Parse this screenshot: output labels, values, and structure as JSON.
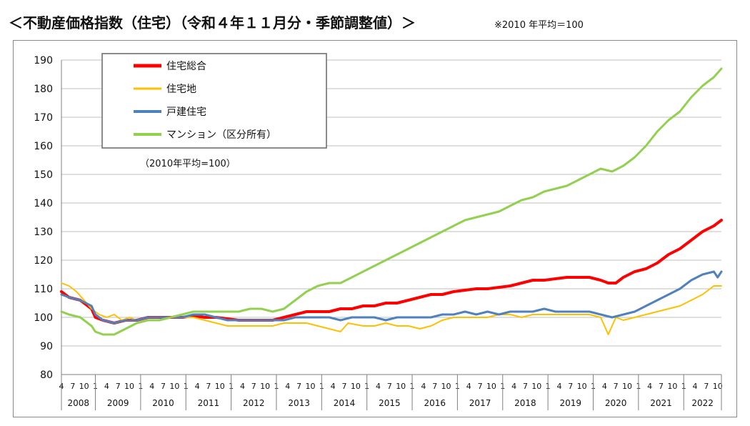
{
  "title": "＜不動産価格指数（住宅）（令和４年１１月分・季節調整値）＞",
  "base_note": "※2010 年平均＝100",
  "chart_data": {
    "type": "line",
    "annotation": "（2010年平均=100）",
    "ylim": [
      80,
      190
    ],
    "yticks": [
      80,
      90,
      100,
      110,
      120,
      130,
      140,
      150,
      160,
      170,
      180,
      190
    ],
    "month_tick_labels": [
      "1",
      "4",
      "7",
      "10"
    ],
    "years": [
      "2008",
      "2009",
      "2010",
      "2011",
      "2012",
      "2013",
      "2014",
      "2015",
      "2016",
      "2017",
      "2018",
      "2019",
      "2020",
      "2021",
      "2022"
    ],
    "x_start": "2008-04",
    "x_end": "2022-11",
    "grid": true,
    "legend_position": "top-left",
    "series": [
      {
        "name": "住宅総合",
        "color": "#ff0000",
        "width": 4,
        "points": [
          [
            "2008-04",
            109
          ],
          [
            "2008-06",
            107
          ],
          [
            "2008-09",
            106
          ],
          [
            "2008-12",
            103
          ],
          [
            "2009-01",
            100
          ],
          [
            "2009-03",
            99
          ],
          [
            "2009-06",
            98
          ],
          [
            "2009-09",
            99
          ],
          [
            "2009-12",
            99
          ],
          [
            "2010-03",
            100
          ],
          [
            "2010-06",
            100
          ],
          [
            "2010-09",
            100
          ],
          [
            "2010-12",
            100
          ],
          [
            "2011-03",
            100.5
          ],
          [
            "2011-06",
            100
          ],
          [
            "2011-09",
            100
          ],
          [
            "2011-12",
            99.5
          ],
          [
            "2012-03",
            99
          ],
          [
            "2012-06",
            99
          ],
          [
            "2012-09",
            99
          ],
          [
            "2012-12",
            99
          ],
          [
            "2013-03",
            100
          ],
          [
            "2013-06",
            101
          ],
          [
            "2013-09",
            102
          ],
          [
            "2013-12",
            102
          ],
          [
            "2014-03",
            102
          ],
          [
            "2014-06",
            103
          ],
          [
            "2014-09",
            103
          ],
          [
            "2014-12",
            104
          ],
          [
            "2015-03",
            104
          ],
          [
            "2015-06",
            105
          ],
          [
            "2015-09",
            105
          ],
          [
            "2015-12",
            106
          ],
          [
            "2016-03",
            107
          ],
          [
            "2016-06",
            108
          ],
          [
            "2016-09",
            108
          ],
          [
            "2016-12",
            109
          ],
          [
            "2017-03",
            109.5
          ],
          [
            "2017-06",
            110
          ],
          [
            "2017-09",
            110
          ],
          [
            "2017-12",
            110.5
          ],
          [
            "2018-03",
            111
          ],
          [
            "2018-06",
            112
          ],
          [
            "2018-09",
            113
          ],
          [
            "2018-12",
            113
          ],
          [
            "2019-03",
            113.5
          ],
          [
            "2019-06",
            114
          ],
          [
            "2019-09",
            114
          ],
          [
            "2019-12",
            114
          ],
          [
            "2020-03",
            113
          ],
          [
            "2020-05",
            112
          ],
          [
            "2020-07",
            112
          ],
          [
            "2020-09",
            114
          ],
          [
            "2020-12",
            116
          ],
          [
            "2021-03",
            117
          ],
          [
            "2021-06",
            119
          ],
          [
            "2021-09",
            122
          ],
          [
            "2021-12",
            124
          ],
          [
            "2022-03",
            127
          ],
          [
            "2022-06",
            130
          ],
          [
            "2022-09",
            132
          ],
          [
            "2022-11",
            134
          ]
        ]
      },
      {
        "name": "住宅地",
        "color": "#ffc000",
        "width": 2,
        "points": [
          [
            "2008-04",
            112
          ],
          [
            "2008-06",
            111
          ],
          [
            "2008-08",
            109
          ],
          [
            "2008-10",
            106
          ],
          [
            "2008-12",
            103
          ],
          [
            "2009-02",
            101
          ],
          [
            "2009-04",
            100
          ],
          [
            "2009-06",
            101
          ],
          [
            "2009-08",
            99
          ],
          [
            "2009-10",
            100
          ],
          [
            "2009-12",
            99
          ],
          [
            "2010-03",
            100
          ],
          [
            "2010-06",
            100
          ],
          [
            "2010-09",
            100
          ],
          [
            "2010-12",
            100
          ],
          [
            "2011-03",
            100
          ],
          [
            "2011-06",
            99
          ],
          [
            "2011-09",
            98
          ],
          [
            "2011-12",
            97
          ],
          [
            "2012-03",
            97
          ],
          [
            "2012-06",
            97
          ],
          [
            "2012-09",
            97
          ],
          [
            "2012-12",
            97
          ],
          [
            "2013-03",
            98
          ],
          [
            "2013-06",
            98
          ],
          [
            "2013-09",
            98
          ],
          [
            "2013-12",
            97
          ],
          [
            "2014-03",
            96
          ],
          [
            "2014-06",
            95
          ],
          [
            "2014-08",
            98
          ],
          [
            "2014-12",
            97
          ],
          [
            "2015-03",
            97
          ],
          [
            "2015-06",
            98
          ],
          [
            "2015-09",
            97
          ],
          [
            "2015-12",
            97
          ],
          [
            "2016-03",
            96
          ],
          [
            "2016-06",
            97
          ],
          [
            "2016-09",
            99
          ],
          [
            "2016-12",
            100
          ],
          [
            "2017-03",
            100
          ],
          [
            "2017-06",
            100
          ],
          [
            "2017-09",
            100
          ],
          [
            "2017-12",
            101
          ],
          [
            "2018-03",
            101
          ],
          [
            "2018-06",
            100
          ],
          [
            "2018-09",
            101
          ],
          [
            "2018-12",
            101
          ],
          [
            "2019-03",
            101
          ],
          [
            "2019-06",
            101
          ],
          [
            "2019-09",
            101
          ],
          [
            "2019-12",
            101
          ],
          [
            "2020-03",
            100
          ],
          [
            "2020-05",
            94
          ],
          [
            "2020-07",
            100
          ],
          [
            "2020-09",
            99
          ],
          [
            "2020-12",
            100
          ],
          [
            "2021-03",
            101
          ],
          [
            "2021-06",
            102
          ],
          [
            "2021-09",
            103
          ],
          [
            "2021-12",
            104
          ],
          [
            "2022-03",
            106
          ],
          [
            "2022-06",
            108
          ],
          [
            "2022-09",
            111
          ],
          [
            "2022-11",
            111
          ]
        ]
      },
      {
        "name": "戸建住宅",
        "color": "#4f81bd",
        "width": 3,
        "points": [
          [
            "2008-04",
            108
          ],
          [
            "2008-06",
            107
          ],
          [
            "2008-09",
            106
          ],
          [
            "2008-12",
            104
          ],
          [
            "2009-01",
            101
          ],
          [
            "2009-03",
            99
          ],
          [
            "2009-06",
            98
          ],
          [
            "2009-09",
            99
          ],
          [
            "2009-12",
            99
          ],
          [
            "2010-03",
            100
          ],
          [
            "2010-06",
            100
          ],
          [
            "2010-09",
            100
          ],
          [
            "2010-12",
            100
          ],
          [
            "2011-03",
            101
          ],
          [
            "2011-06",
            101
          ],
          [
            "2011-09",
            100
          ],
          [
            "2011-12",
            99
          ],
          [
            "2012-03",
            99
          ],
          [
            "2012-06",
            99
          ],
          [
            "2012-09",
            99
          ],
          [
            "2012-12",
            99
          ],
          [
            "2013-03",
            99
          ],
          [
            "2013-06",
            100
          ],
          [
            "2013-09",
            100
          ],
          [
            "2013-12",
            100
          ],
          [
            "2014-03",
            100
          ],
          [
            "2014-06",
            99
          ],
          [
            "2014-09",
            100
          ],
          [
            "2014-12",
            100
          ],
          [
            "2015-03",
            100
          ],
          [
            "2015-06",
            99
          ],
          [
            "2015-09",
            100
          ],
          [
            "2015-12",
            100
          ],
          [
            "2016-03",
            100
          ],
          [
            "2016-06",
            100
          ],
          [
            "2016-09",
            101
          ],
          [
            "2016-12",
            101
          ],
          [
            "2017-03",
            102
          ],
          [
            "2017-06",
            101
          ],
          [
            "2017-09",
            102
          ],
          [
            "2017-12",
            101
          ],
          [
            "2018-03",
            102
          ],
          [
            "2018-06",
            102
          ],
          [
            "2018-09",
            102
          ],
          [
            "2018-12",
            103
          ],
          [
            "2019-03",
            102
          ],
          [
            "2019-06",
            102
          ],
          [
            "2019-09",
            102
          ],
          [
            "2019-12",
            102
          ],
          [
            "2020-03",
            101
          ],
          [
            "2020-06",
            100
          ],
          [
            "2020-09",
            101
          ],
          [
            "2020-12",
            102
          ],
          [
            "2021-03",
            104
          ],
          [
            "2021-06",
            106
          ],
          [
            "2021-09",
            108
          ],
          [
            "2021-12",
            110
          ],
          [
            "2022-03",
            113
          ],
          [
            "2022-06",
            115
          ],
          [
            "2022-09",
            116
          ],
          [
            "2022-10",
            114
          ],
          [
            "2022-11",
            116
          ]
        ]
      },
      {
        "name": "マンション（区分所有）",
        "color": "#92d050",
        "width": 3,
        "points": [
          [
            "2008-04",
            102
          ],
          [
            "2008-06",
            101
          ],
          [
            "2008-09",
            100
          ],
          [
            "2008-12",
            97
          ],
          [
            "2009-01",
            95
          ],
          [
            "2009-03",
            94
          ],
          [
            "2009-06",
            94
          ],
          [
            "2009-09",
            96
          ],
          [
            "2009-12",
            98
          ],
          [
            "2010-03",
            99
          ],
          [
            "2010-06",
            99
          ],
          [
            "2010-09",
            100
          ],
          [
            "2010-12",
            101
          ],
          [
            "2011-03",
            102
          ],
          [
            "2011-06",
            102
          ],
          [
            "2011-09",
            102
          ],
          [
            "2011-12",
            102
          ],
          [
            "2012-03",
            102
          ],
          [
            "2012-06",
            103
          ],
          [
            "2012-09",
            103
          ],
          [
            "2012-12",
            102
          ],
          [
            "2013-03",
            103
          ],
          [
            "2013-06",
            106
          ],
          [
            "2013-09",
            109
          ],
          [
            "2013-12",
            111
          ],
          [
            "2014-03",
            112
          ],
          [
            "2014-06",
            112
          ],
          [
            "2014-09",
            114
          ],
          [
            "2014-12",
            116
          ],
          [
            "2015-03",
            118
          ],
          [
            "2015-06",
            120
          ],
          [
            "2015-09",
            122
          ],
          [
            "2015-12",
            124
          ],
          [
            "2016-03",
            126
          ],
          [
            "2016-06",
            128
          ],
          [
            "2016-09",
            130
          ],
          [
            "2016-12",
            132
          ],
          [
            "2017-03",
            134
          ],
          [
            "2017-06",
            135
          ],
          [
            "2017-09",
            136
          ],
          [
            "2017-12",
            137
          ],
          [
            "2018-03",
            139
          ],
          [
            "2018-06",
            141
          ],
          [
            "2018-09",
            142
          ],
          [
            "2018-12",
            144
          ],
          [
            "2019-03",
            145
          ],
          [
            "2019-06",
            146
          ],
          [
            "2019-09",
            148
          ],
          [
            "2019-12",
            150
          ],
          [
            "2020-03",
            152
          ],
          [
            "2020-06",
            151
          ],
          [
            "2020-09",
            153
          ],
          [
            "2020-12",
            156
          ],
          [
            "2021-03",
            160
          ],
          [
            "2021-06",
            165
          ],
          [
            "2021-09",
            169
          ],
          [
            "2021-12",
            172
          ],
          [
            "2022-03",
            177
          ],
          [
            "2022-06",
            181
          ],
          [
            "2022-09",
            184
          ],
          [
            "2022-11",
            187
          ]
        ]
      }
    ]
  }
}
